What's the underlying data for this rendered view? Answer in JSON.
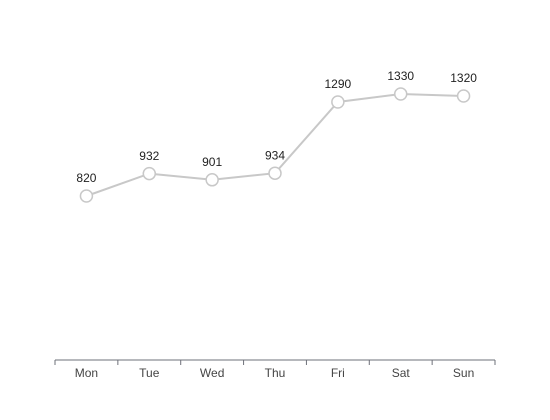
{
  "chart_data": {
    "type": "line",
    "categories": [
      "Mon",
      "Tue",
      "Wed",
      "Thu",
      "Fri",
      "Sat",
      "Sun"
    ],
    "values": [
      820,
      932,
      901,
      934,
      1290,
      1330,
      1320
    ],
    "color": "#c8c8c8",
    "ylim": [
      0,
      1500
    ]
  }
}
